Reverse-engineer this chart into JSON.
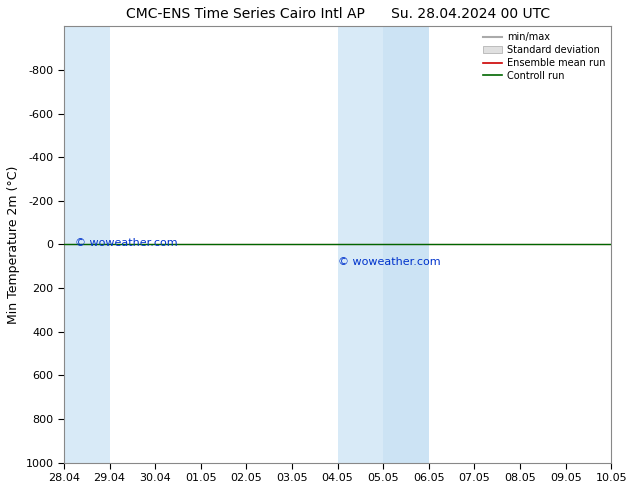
{
  "title_left": "CMC-ENS Time Series Cairo Intl AP",
  "title_right": "Su. 28.04.2024 00 UTC",
  "ylabel": "Min Temperature 2m (°C)",
  "ylim": [
    -1000,
    1000
  ],
  "yticks": [
    -800,
    -600,
    -400,
    -200,
    0,
    200,
    400,
    600,
    800,
    1000
  ],
  "xtick_labels": [
    "28.04",
    "29.04",
    "30.04",
    "01.05",
    "02.05",
    "03.05",
    "04.05",
    "05.05",
    "06.05",
    "07.05",
    "08.05",
    "09.05",
    "10.05"
  ],
  "shaded_bands": [
    {
      "xstart": 0,
      "xend": 1,
      "color": "#d8eaf7"
    },
    {
      "xstart": 6,
      "xend": 7,
      "color": "#d8eaf7"
    },
    {
      "xstart": 7,
      "xend": 8,
      "color": "#cce3f4"
    }
  ],
  "horizontal_line_y": 0,
  "line_color_ensemble": "#cc0000",
  "line_color_control": "#006600",
  "line_color_minmax": "#888888",
  "fill_color_std": "#cccccc",
  "watermark": "© woweather.com",
  "watermark_color": "#0033cc",
  "background_color": "#ffffff",
  "legend_items": [
    "min/max",
    "Standard deviation",
    "Ensemble mean run",
    "Controll run"
  ],
  "legend_colors_line": [
    "#aaaaaa",
    "#cccccc",
    "#cc0000",
    "#006600"
  ],
  "title_fontsize": 10,
  "axis_fontsize": 8,
  "ylabel_fontsize": 9
}
